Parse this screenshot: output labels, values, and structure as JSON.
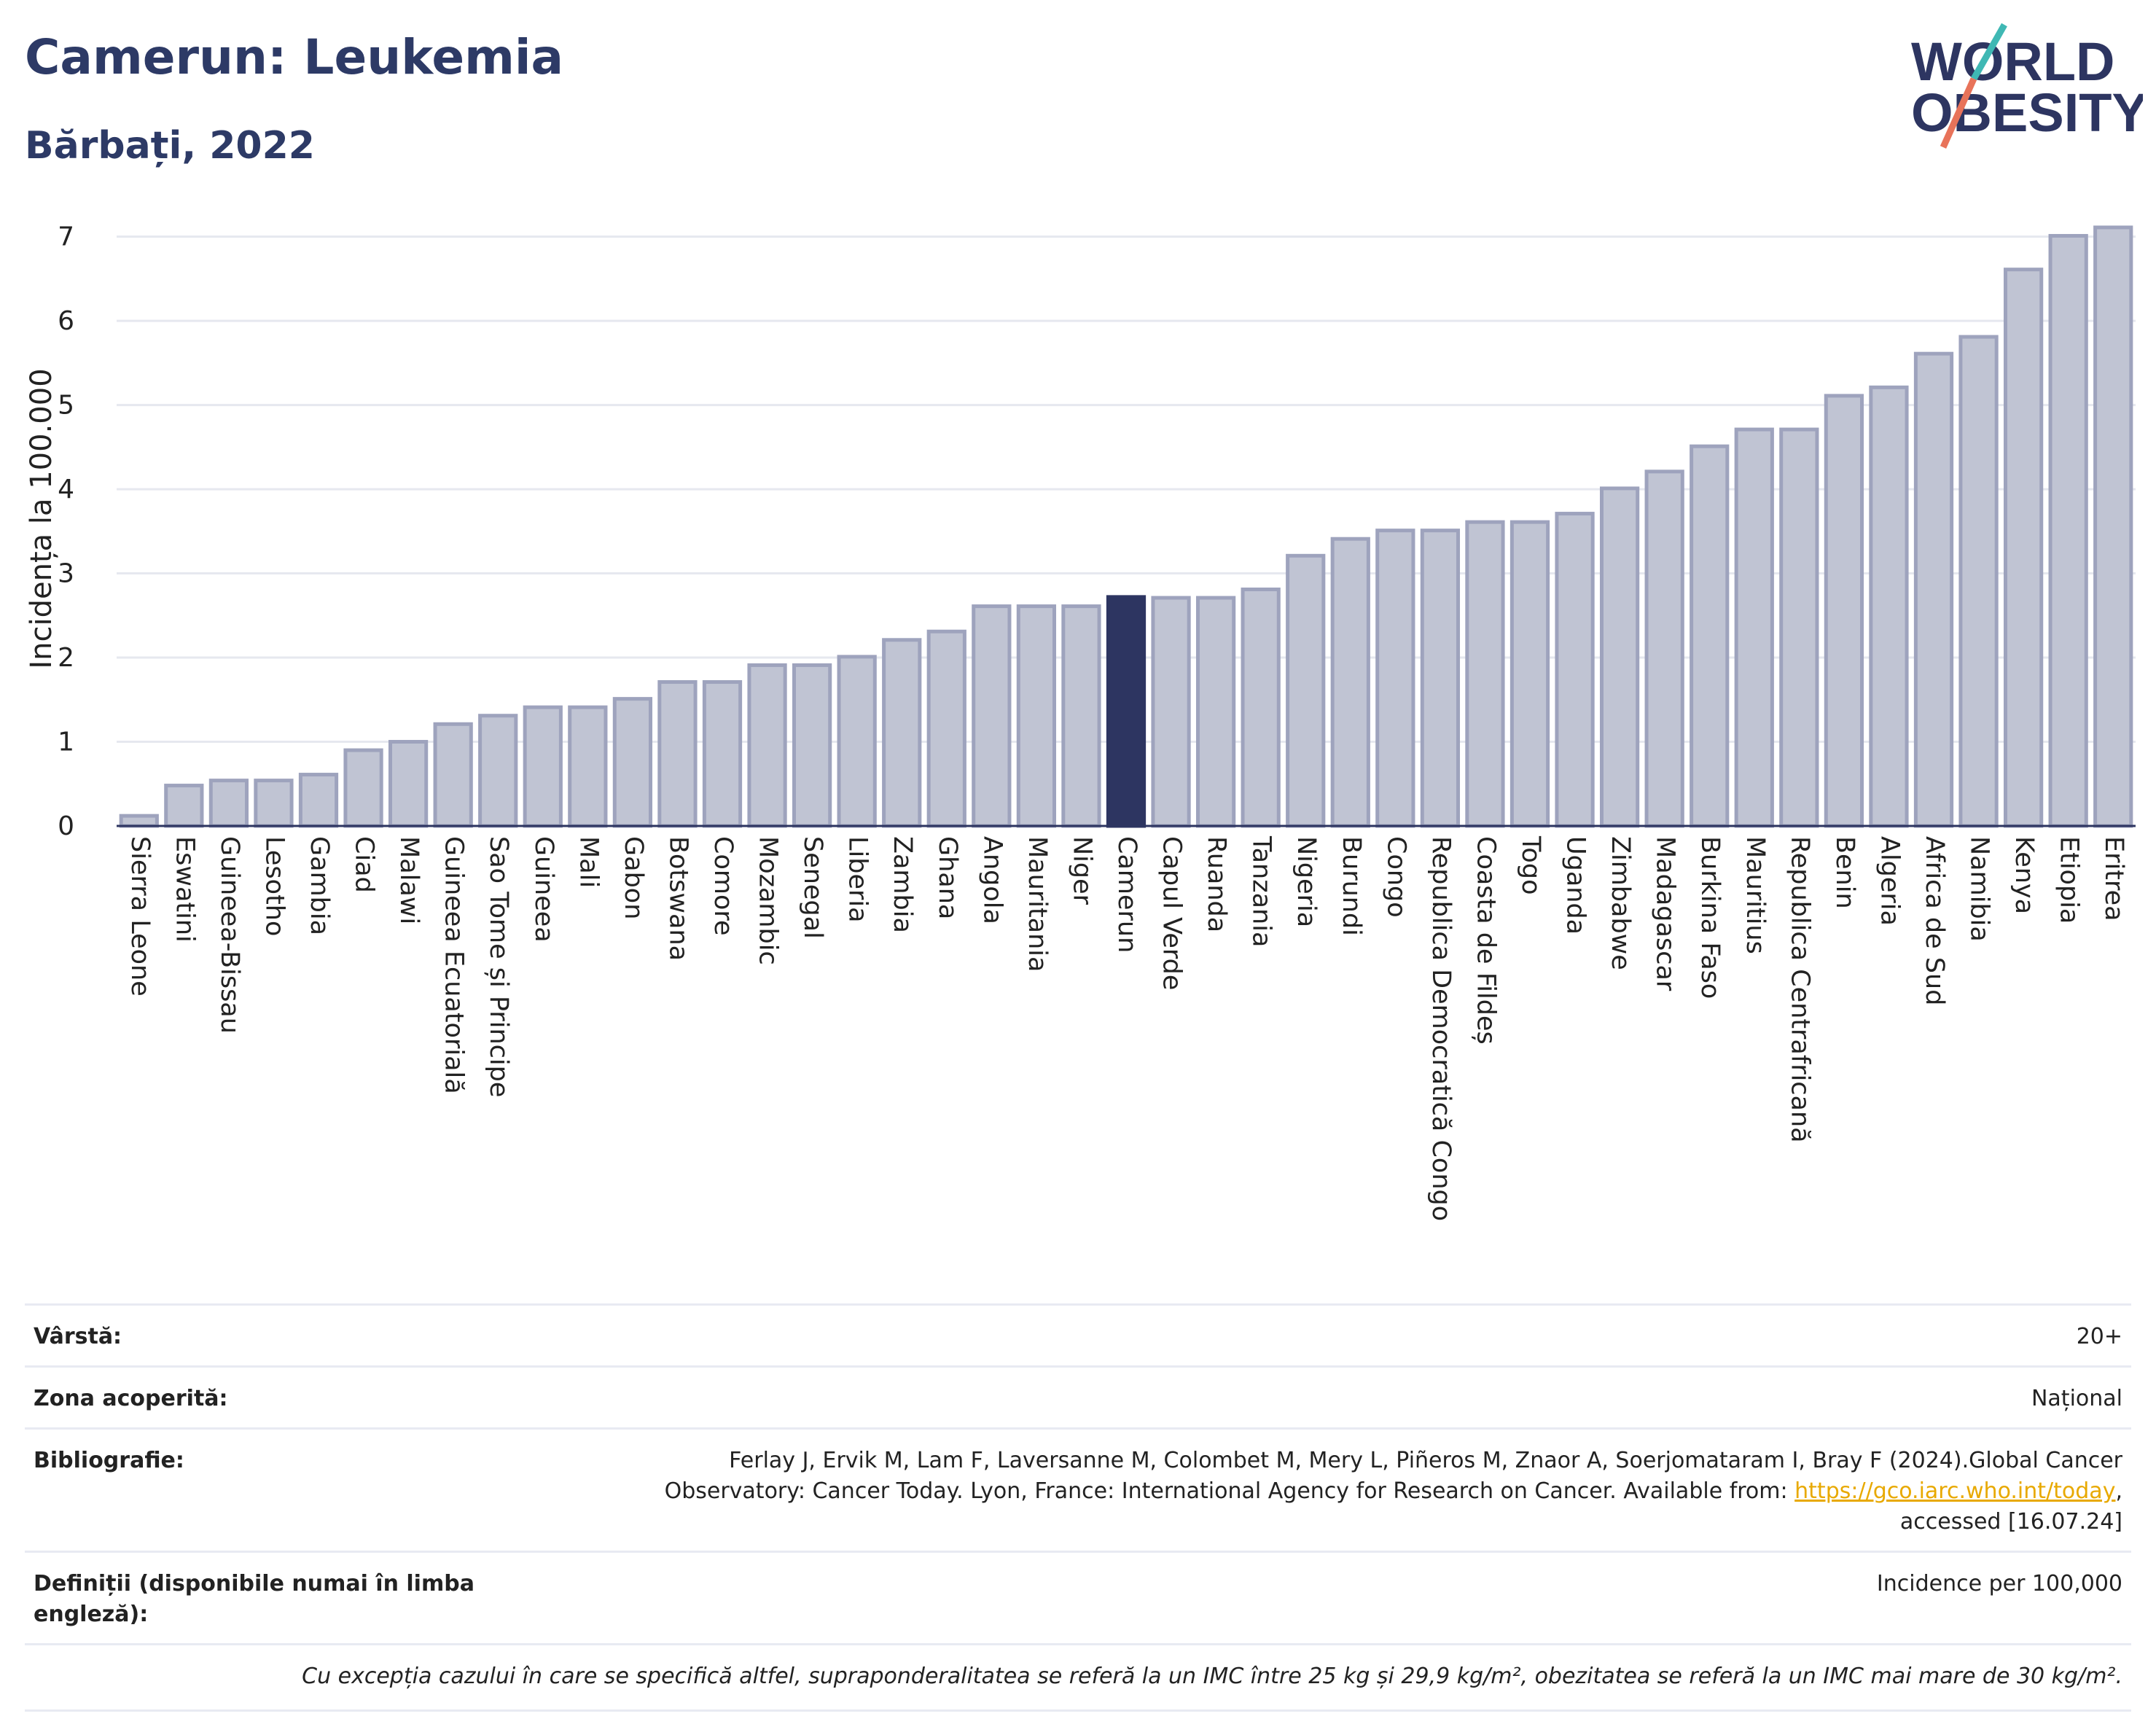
{
  "header": {
    "title": "Camerun: Leukemia",
    "subtitle": "Bărbați, 2022"
  },
  "logo": {
    "line1": "WORLD",
    "line2": "OBESITY"
  },
  "chart_data": {
    "type": "bar",
    "ylabel": "Incidența la 100.000",
    "ylim": [
      0,
      7.3
    ],
    "yticks": [
      0,
      1,
      2,
      3,
      4,
      5,
      6,
      7
    ],
    "grid": true,
    "highlight": "Camerun",
    "colors": {
      "bar": "#c0c4d3",
      "bar_edge": "#9ea3bd",
      "highlight": "#2d3561"
    },
    "categories": [
      "Sierra Leone",
      "Eswatini",
      "Guineea-Bissau",
      "Lesotho",
      "Gambia",
      "Ciad",
      "Malawi",
      "Guineea Ecuatorială",
      "Sao Tome și Principe",
      "Guineea",
      "Mali",
      "Gabon",
      "Botswana",
      "Comore",
      "Mozambic",
      "Senegal",
      "Liberia",
      "Zambia",
      "Ghana",
      "Angola",
      "Mauritania",
      "Niger",
      "Camerun",
      "Capul Verde",
      "Ruanda",
      "Tanzania",
      "Nigeria",
      "Burundi",
      "Congo",
      "Republica Democratică Congo",
      "Coasta de Fildeș",
      "Togo",
      "Uganda",
      "Zimbabwe",
      "Madagascar",
      "Burkina Faso",
      "Mauritius",
      "Republica Centrafricană",
      "Benin",
      "Algeria",
      "Africa de Sud",
      "Namibia",
      "Kenya",
      "Etiopia",
      "Eritrea"
    ],
    "values": [
      0.12,
      0.48,
      0.54,
      0.54,
      0.61,
      0.9,
      1.0,
      1.21,
      1.31,
      1.41,
      1.41,
      1.51,
      1.71,
      1.71,
      1.91,
      1.91,
      2.01,
      2.21,
      2.31,
      2.61,
      2.61,
      2.61,
      2.72,
      2.71,
      2.71,
      2.81,
      3.21,
      3.41,
      3.51,
      3.51,
      3.61,
      3.61,
      3.71,
      4.01,
      4.21,
      4.51,
      4.71,
      4.71,
      5.11,
      5.21,
      5.61,
      5.81,
      6.61,
      7.01,
      7.11
    ]
  },
  "details": {
    "age_label": "Vârstă:",
    "age_value": "20+",
    "coverage_label": "Zona acoperită:",
    "coverage_value": "Național",
    "biblio_label": "Bibliografie:",
    "biblio_text1": "Ferlay J, Ervik M, Lam F, Laversanne M, Colombet M, Mery L, Piñeros M, Znaor A, Soerjomataram I, Bray F (2024).Global Cancer",
    "biblio_text2": "Observatory: Cancer Today. Lyon, France: International Agency for Research on Cancer. Available from: ",
    "biblio_link": "https://gco.iarc.who.int/today",
    "biblio_text3": "accessed [16.07.24]",
    "definitions_label": "Definiții (disponibile numai în limba engleză):",
    "definitions_value": "Incidence per 100,000",
    "footnote": "Cu excepția cazului în care se specifică altfel, supraponderalitatea se referă la un IMC între 25 kg și 29,9 kg/m², obezitatea se referă la un IMC mai mare de 30 kg/m²."
  }
}
